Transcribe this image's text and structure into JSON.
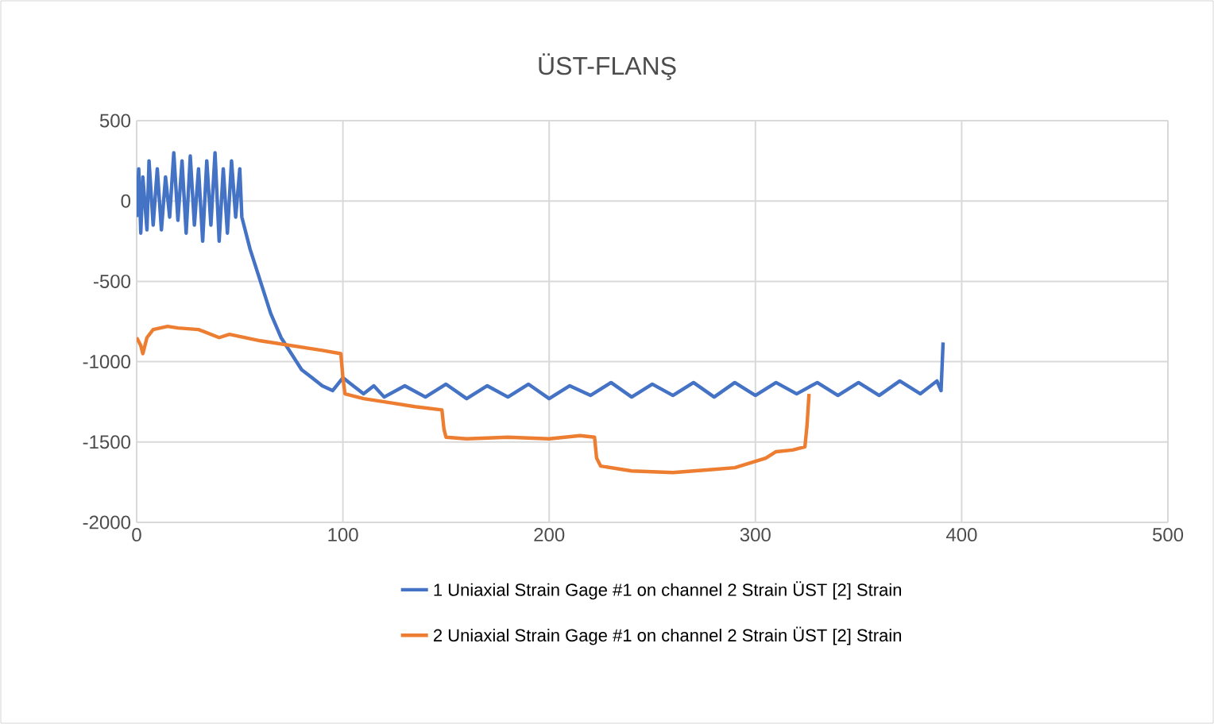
{
  "chart_data": {
    "type": "line",
    "title": "ÜST-FLANŞ",
    "xlim": [
      0,
      500
    ],
    "xticks": [
      0,
      100,
      200,
      300,
      400,
      500
    ],
    "ylim": [
      -2000,
      500
    ],
    "yticks": [
      -2000,
      -1500,
      -1000,
      -500,
      0,
      500
    ],
    "grid": true,
    "legend": "bottom",
    "marker": "none",
    "line_style": "solid",
    "series": [
      {
        "name": "1 Uniaxial Strain Gage #1 on channel 2 Strain ÜST [2]  Strain",
        "color": "#4472c4",
        "x": [
          0,
          1,
          2,
          3,
          5,
          6,
          8,
          10,
          12,
          14,
          16,
          18,
          20,
          22,
          24,
          26,
          28,
          30,
          32,
          34,
          36,
          38,
          40,
          42,
          44,
          46,
          48,
          50,
          51,
          55,
          60,
          65,
          70,
          75,
          80,
          85,
          90,
          95,
          100,
          105,
          110,
          115,
          120,
          130,
          140,
          150,
          160,
          170,
          180,
          190,
          200,
          210,
          220,
          230,
          240,
          250,
          260,
          270,
          280,
          290,
          300,
          310,
          320,
          330,
          340,
          350,
          360,
          370,
          380,
          388,
          390,
          391
        ],
        "values": [
          -100,
          200,
          -200,
          150,
          -180,
          250,
          -150,
          200,
          -180,
          150,
          -100,
          300,
          -120,
          250,
          -200,
          280,
          -150,
          200,
          -250,
          250,
          -150,
          300,
          -250,
          200,
          -200,
          250,
          -100,
          200,
          -100,
          -300,
          -500,
          -700,
          -850,
          -950,
          -1050,
          -1100,
          -1150,
          -1180,
          -1100,
          -1150,
          -1200,
          -1150,
          -1220,
          -1150,
          -1220,
          -1140,
          -1230,
          -1150,
          -1220,
          -1140,
          -1230,
          -1150,
          -1210,
          -1130,
          -1220,
          -1140,
          -1210,
          -1130,
          -1220,
          -1130,
          -1210,
          -1130,
          -1200,
          -1130,
          -1210,
          -1130,
          -1210,
          -1120,
          -1200,
          -1120,
          -1180,
          -880
        ]
      },
      {
        "name": "2 Uniaxial Strain Gage #1 on channel 2 Strain ÜST [2]  Strain",
        "color": "#ed7d31",
        "x": [
          0,
          2,
          3,
          5,
          8,
          15,
          20,
          30,
          40,
          45,
          60,
          75,
          90,
          99,
          100,
          101,
          110,
          120,
          135,
          148,
          149,
          150,
          160,
          180,
          200,
          215,
          222,
          223,
          225,
          240,
          260,
          280,
          290,
          300,
          305,
          310,
          318,
          324,
          325,
          326
        ],
        "values": [
          -850,
          -900,
          -950,
          -850,
          -800,
          -780,
          -790,
          -800,
          -850,
          -830,
          -870,
          -900,
          -930,
          -950,
          -1100,
          -1200,
          -1230,
          -1250,
          -1280,
          -1300,
          -1420,
          -1470,
          -1480,
          -1470,
          -1480,
          -1460,
          -1470,
          -1600,
          -1650,
          -1680,
          -1690,
          -1670,
          -1660,
          -1620,
          -1600,
          -1560,
          -1550,
          -1530,
          -1400,
          -1200
        ]
      }
    ]
  }
}
